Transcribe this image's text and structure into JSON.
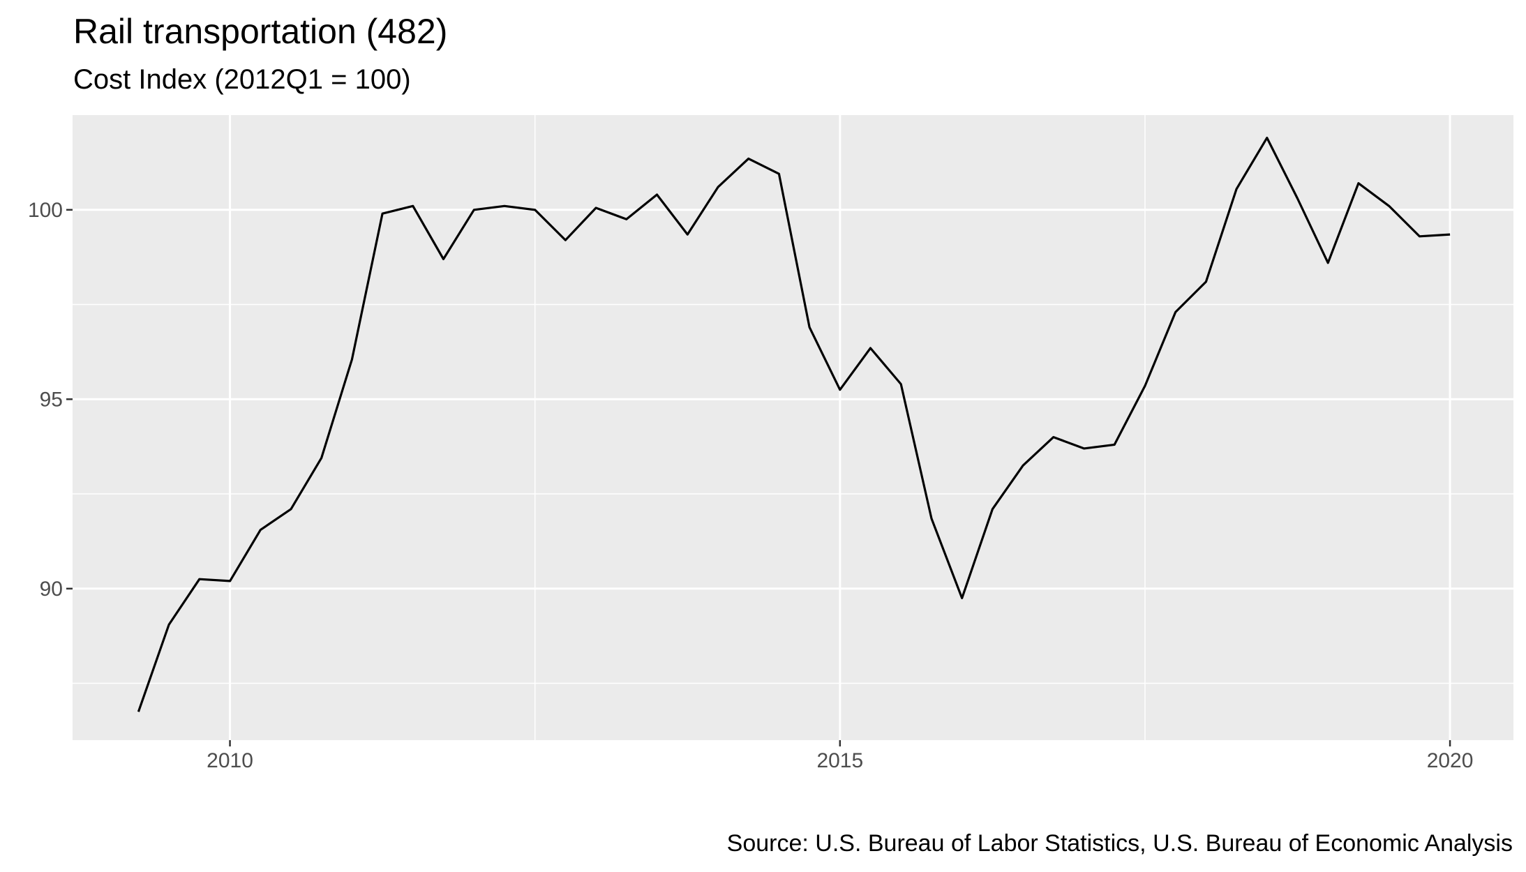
{
  "chart_data": {
    "type": "line",
    "title": "Rail transportation (482)",
    "subtitle": "Cost Index (2012Q1 = 100)",
    "caption": "Source: U.S. Bureau of Labor Statistics, U.S. Bureau of Economic Analysis",
    "xlabel": "",
    "ylabel": "",
    "x_ticks": [
      {
        "value": 2010,
        "label": "2010"
      },
      {
        "value": 2015,
        "label": "2015"
      },
      {
        "value": 2020,
        "label": "2020"
      }
    ],
    "y_ticks": [
      {
        "value": 90,
        "label": "90"
      },
      {
        "value": 95,
        "label": "95"
      },
      {
        "value": 100,
        "label": "100"
      }
    ],
    "xlim": [
      2008.71,
      2020.52
    ],
    "ylim": [
      86.0,
      102.5
    ],
    "grid": true,
    "background": "#ebebeb",
    "line_color": "#000000",
    "series": [
      {
        "x": [
          2009.25,
          2009.5,
          2009.75,
          2010.0,
          2010.25,
          2010.5,
          2010.75,
          2011.0,
          2011.25,
          2011.5,
          2011.75,
          2012.0,
          2012.25,
          2012.5,
          2012.75,
          2013.0,
          2013.25,
          2013.5,
          2013.75,
          2014.0,
          2014.25,
          2014.5,
          2014.75,
          2015.0,
          2015.25,
          2015.5,
          2015.75,
          2016.0,
          2016.25,
          2016.5,
          2016.75,
          2017.0,
          2017.25,
          2017.5,
          2017.75,
          2018.0,
          2018.25,
          2018.5,
          2018.75,
          2019.0,
          2019.25,
          2019.5,
          2019.75,
          2020.0
        ],
        "y": [
          86.75,
          89.05,
          90.25,
          90.2,
          91.55,
          92.1,
          93.45,
          96.05,
          99.9,
          100.1,
          98.7,
          100.0,
          100.1,
          100.0,
          99.2,
          100.05,
          99.75,
          100.4,
          99.35,
          100.6,
          101.35,
          100.95,
          96.9,
          95.25,
          96.35,
          95.4,
          91.85,
          89.75,
          92.1,
          93.25,
          94.0,
          93.7,
          93.8,
          95.35,
          97.3,
          98.1,
          100.55,
          101.9,
          100.3,
          98.6,
          100.7,
          100.1,
          99.3,
          99.35
        ]
      }
    ]
  }
}
